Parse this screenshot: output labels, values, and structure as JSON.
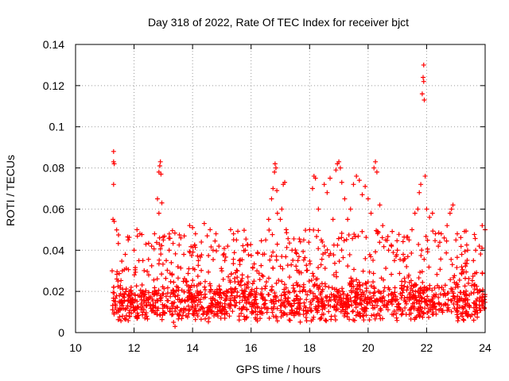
{
  "chart_data": {
    "type": "scatter",
    "title": "Day 318 of 2022, Rate Of TEC Index for receiver bjct",
    "xlabel": "GPS time / hours",
    "ylabel": "ROTI / TECUs",
    "xlim": [
      10,
      24
    ],
    "ylim": [
      0,
      0.14
    ],
    "xticks": [
      10,
      12,
      14,
      16,
      18,
      20,
      22,
      24
    ],
    "xtick_labels": [
      "10",
      "12",
      "14",
      "16",
      "18",
      "20",
      "22",
      "24"
    ],
    "yticks": [
      0,
      0.02,
      0.04,
      0.06,
      0.08,
      0.1,
      0.12,
      0.14
    ],
    "ytick_labels": [
      "0",
      "0.02",
      "0.04",
      "0.06",
      "0.08",
      "0.1",
      "0.12",
      "0.14"
    ],
    "grid": true,
    "marker": "+",
    "color": "#ff0000",
    "series": [
      {
        "name": "ROTI",
        "points": [
          [
            11.3,
            0.088
          ],
          [
            11.3,
            0.083
          ],
          [
            11.32,
            0.082
          ],
          [
            11.3,
            0.072
          ],
          [
            11.28,
            0.055
          ],
          [
            11.32,
            0.054
          ],
          [
            11.25,
            0.03
          ],
          [
            11.3,
            0.022
          ],
          [
            11.35,
            0.015
          ],
          [
            11.4,
            0.01
          ],
          [
            11.45,
            0.025
          ],
          [
            11.5,
            0.018
          ],
          [
            11.6,
            0.03
          ],
          [
            11.7,
            0.038
          ],
          [
            11.8,
            0.045
          ],
          [
            11.9,
            0.022
          ],
          [
            12.0,
            0.04
          ],
          [
            12.1,
            0.05
          ],
          [
            12.2,
            0.048
          ],
          [
            12.3,
            0.035
          ],
          [
            12.5,
            0.028
          ],
          [
            12.6,
            0.042
          ],
          [
            12.7,
            0.048
          ],
          [
            12.8,
            0.065
          ],
          [
            12.85,
            0.078
          ],
          [
            12.88,
            0.081
          ],
          [
            12.9,
            0.083
          ],
          [
            12.92,
            0.077
          ],
          [
            12.95,
            0.063
          ],
          [
            12.85,
            0.058
          ],
          [
            13.0,
            0.045
          ],
          [
            13.1,
            0.035
          ],
          [
            13.2,
            0.04
          ],
          [
            13.3,
            0.028
          ],
          [
            13.35,
            0.005
          ],
          [
            13.4,
            0.003
          ],
          [
            13.5,
            0.032
          ],
          [
            13.6,
            0.046
          ],
          [
            13.7,
            0.038
          ],
          [
            13.8,
            0.025
          ],
          [
            13.9,
            0.052
          ],
          [
            14.0,
            0.051
          ],
          [
            14.1,
            0.048
          ],
          [
            14.2,
            0.035
          ],
          [
            14.3,
            0.044
          ],
          [
            14.4,
            0.053
          ],
          [
            14.5,
            0.047
          ],
          [
            14.6,
            0.05
          ],
          [
            14.7,
            0.04
          ],
          [
            14.8,
            0.048
          ],
          [
            14.9,
            0.042
          ],
          [
            15.0,
            0.03
          ],
          [
            15.1,
            0.035
          ],
          [
            15.2,
            0.042
          ],
          [
            15.3,
            0.05
          ],
          [
            15.4,
            0.048
          ],
          [
            15.5,
            0.045
          ],
          [
            15.6,
            0.035
          ],
          [
            15.7,
            0.028
          ],
          [
            15.8,
            0.04
          ],
          [
            15.9,
            0.022
          ],
          [
            16.0,
            0.018
          ],
          [
            16.1,
            0.025
          ],
          [
            16.2,
            0.03
          ],
          [
            16.4,
            0.038
          ],
          [
            16.5,
            0.045
          ],
          [
            16.6,
            0.055
          ],
          [
            16.7,
            0.065
          ],
          [
            16.75,
            0.07
          ],
          [
            16.8,
            0.078
          ],
          [
            16.82,
            0.082
          ],
          [
            16.85,
            0.08
          ],
          [
            16.88,
            0.069
          ],
          [
            16.9,
            0.058
          ],
          [
            17.0,
            0.055
          ],
          [
            17.05,
            0.06
          ],
          [
            17.1,
            0.072
          ],
          [
            17.15,
            0.073
          ],
          [
            17.2,
            0.05
          ],
          [
            17.4,
            0.04
          ],
          [
            17.6,
            0.035
          ],
          [
            17.8,
            0.045
          ],
          [
            18.0,
            0.05
          ],
          [
            18.1,
            0.07
          ],
          [
            18.15,
            0.076
          ],
          [
            18.2,
            0.075
          ],
          [
            18.3,
            0.06
          ],
          [
            18.4,
            0.045
          ],
          [
            18.5,
            0.072
          ],
          [
            18.6,
            0.068
          ],
          [
            18.7,
            0.075
          ],
          [
            18.8,
            0.055
          ],
          [
            18.9,
            0.079
          ],
          [
            18.95,
            0.082
          ],
          [
            19.0,
            0.083
          ],
          [
            19.05,
            0.08
          ],
          [
            19.1,
            0.073
          ],
          [
            19.2,
            0.065
          ],
          [
            19.3,
            0.055
          ],
          [
            19.4,
            0.06
          ],
          [
            19.5,
            0.072
          ],
          [
            19.6,
            0.076
          ],
          [
            19.7,
            0.074
          ],
          [
            19.8,
            0.067
          ],
          [
            19.9,
            0.071
          ],
          [
            20.0,
            0.065
          ],
          [
            20.1,
            0.058
          ],
          [
            20.2,
            0.08
          ],
          [
            20.25,
            0.083
          ],
          [
            20.3,
            0.078
          ],
          [
            20.4,
            0.062
          ],
          [
            20.5,
            0.052
          ],
          [
            20.6,
            0.045
          ],
          [
            20.7,
            0.04
          ],
          [
            20.8,
            0.042
          ],
          [
            20.9,
            0.035
          ],
          [
            21.0,
            0.04
          ],
          [
            21.2,
            0.038
          ],
          [
            21.4,
            0.045
          ],
          [
            21.5,
            0.05
          ],
          [
            21.6,
            0.058
          ],
          [
            21.7,
            0.06
          ],
          [
            21.75,
            0.068
          ],
          [
            21.8,
            0.072
          ],
          [
            21.85,
            0.116
          ],
          [
            21.88,
            0.124
          ],
          [
            21.9,
            0.13
          ],
          [
            21.9,
            0.122
          ],
          [
            21.92,
            0.113
          ],
          [
            21.95,
            0.076
          ],
          [
            22.0,
            0.06
          ],
          [
            22.1,
            0.056
          ],
          [
            22.2,
            0.058
          ],
          [
            22.3,
            0.048
          ],
          [
            22.4,
            0.042
          ],
          [
            22.5,
            0.048
          ],
          [
            22.6,
            0.046
          ],
          [
            22.7,
            0.052
          ],
          [
            22.8,
            0.058
          ],
          [
            22.85,
            0.06
          ],
          [
            22.9,
            0.062
          ],
          [
            23.0,
            0.045
          ],
          [
            23.2,
            0.038
          ],
          [
            23.4,
            0.04
          ],
          [
            23.6,
            0.035
          ],
          [
            23.8,
            0.042
          ],
          [
            23.9,
            0.052
          ],
          [
            24.0,
            0.05
          ]
        ]
      }
    ],
    "bulk_band": {
      "note": "dense cloud of points between roughly 0.005 and 0.035",
      "x_start": 11.25,
      "x_end": 24.0,
      "y_low": 0.005,
      "y_high": 0.035
    }
  }
}
